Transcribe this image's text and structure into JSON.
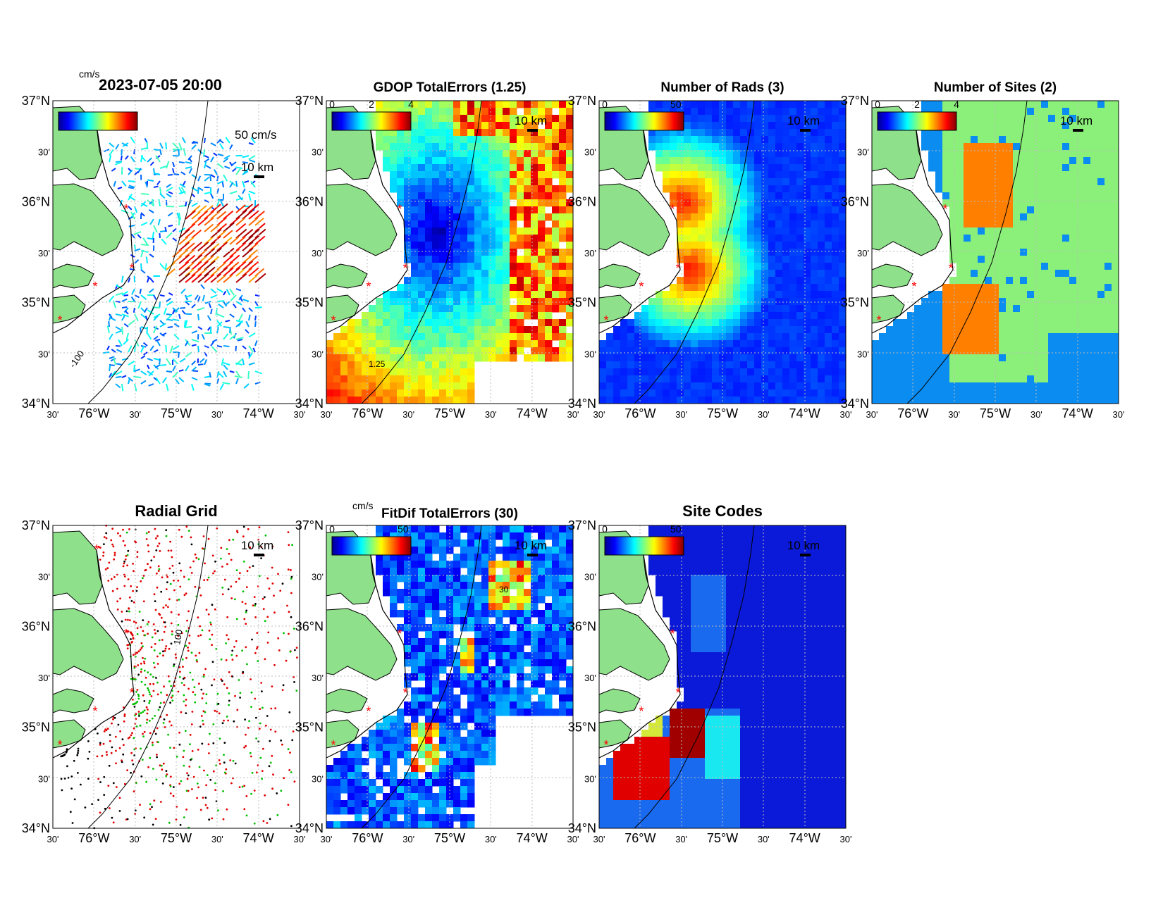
{
  "figure_title": "2023-07-05 20:00",
  "unit_top": "cm/s",
  "axes": {
    "lat_labels": [
      "37°N",
      "30'",
      "36°N",
      "30'",
      "35°N",
      "30'",
      "34°N"
    ],
    "lon_labels": [
      "30'",
      "76°W",
      "30'",
      "75°W",
      "30'",
      "74°W",
      "30'"
    ]
  },
  "scale_bar": "10 km",
  "vector_scale": "50 cm/s",
  "panels": [
    {
      "id": "currents",
      "title": "",
      "contour": "-100",
      "colorbar": []
    },
    {
      "id": "gdop",
      "title": "GDOP TotalErrors (1.25)",
      "colorbar": [
        "0",
        "2",
        "4"
      ],
      "contour": "1.25"
    },
    {
      "id": "rads",
      "title": "Number of Rads (3)",
      "colorbar": [
        "0",
        "50"
      ],
      "contour": "3"
    },
    {
      "id": "sites",
      "title": "Number of Sites (2)",
      "colorbar": [
        "0",
        "2",
        "4"
      ],
      "contour": "2"
    },
    {
      "id": "radial-grid",
      "title": "Radial Grid",
      "colorbar": [],
      "contour": "100"
    },
    {
      "id": "fitdif",
      "title": "FitDif TotalErrors (30)",
      "unit": "cm/s",
      "colorbar": [
        "0",
        "50"
      ],
      "contour": "30"
    },
    {
      "id": "site-codes",
      "title": "Site Codes",
      "colorbar": [
        "0",
        "50"
      ]
    }
  ],
  "colors": {
    "land": "#8fe08a",
    "ocean_low": "#0010c8",
    "site_marker": "#ff0000"
  }
}
